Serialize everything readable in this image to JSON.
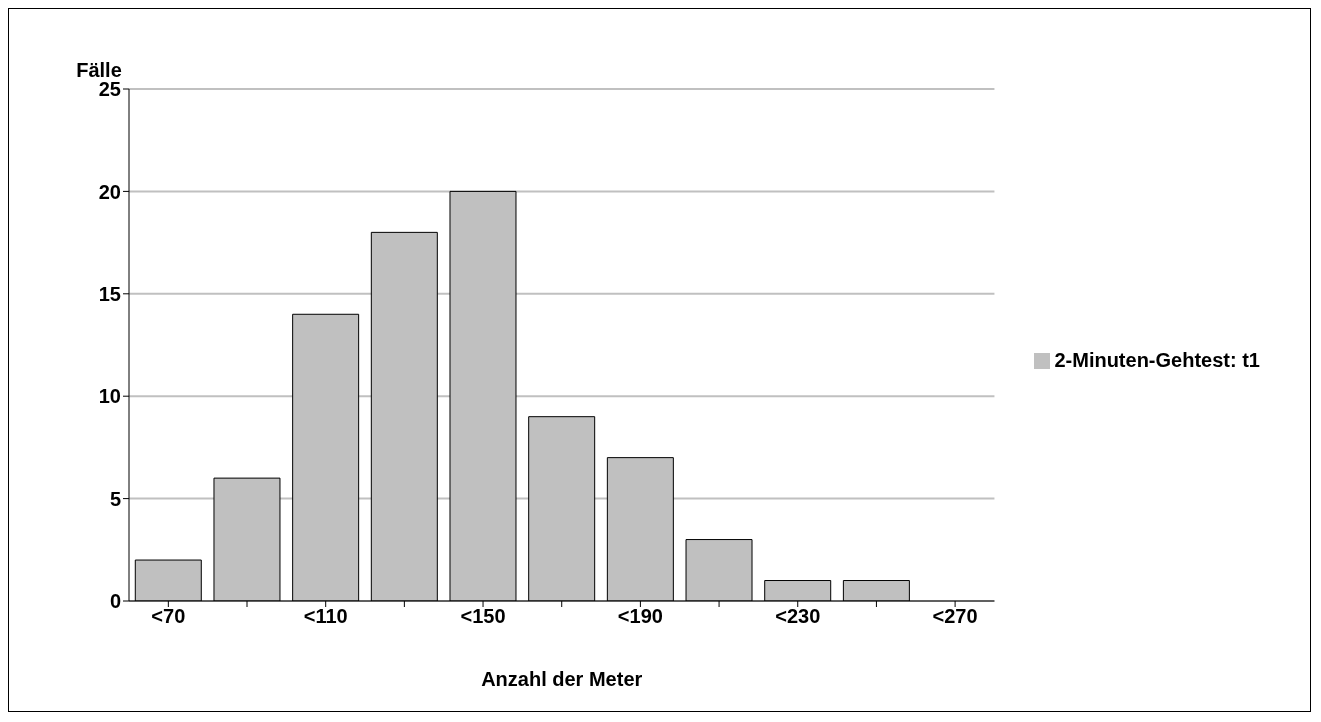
{
  "chart_data": {
    "type": "bar",
    "ylabel": "Fälle",
    "xlabel": "Anzahl der Meter",
    "categories": [
      "<70",
      null,
      "<110",
      null,
      "<150",
      null,
      "<190",
      null,
      "<230",
      null,
      "<270"
    ],
    "series": [
      {
        "name": "2-Minuten-Gehtest: t1",
        "color": "#c0c0c0",
        "values": [
          2,
          6,
          14,
          18,
          20,
          9,
          7,
          3,
          1,
          1,
          null
        ]
      }
    ],
    "ylim": [
      0,
      25
    ],
    "yticks": [
      0,
      5,
      10,
      15,
      20,
      25
    ],
    "grid": "y",
    "legend": "right"
  }
}
